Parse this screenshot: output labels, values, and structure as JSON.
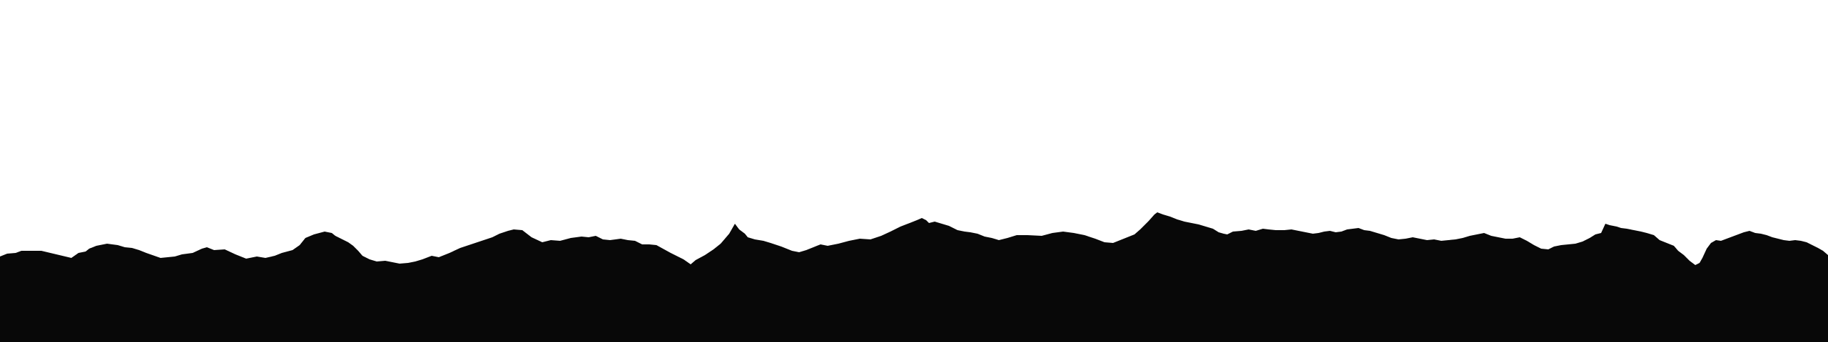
{
  "colors": {
    "background": "#ffffff",
    "silhouette": "#080808"
  }
}
